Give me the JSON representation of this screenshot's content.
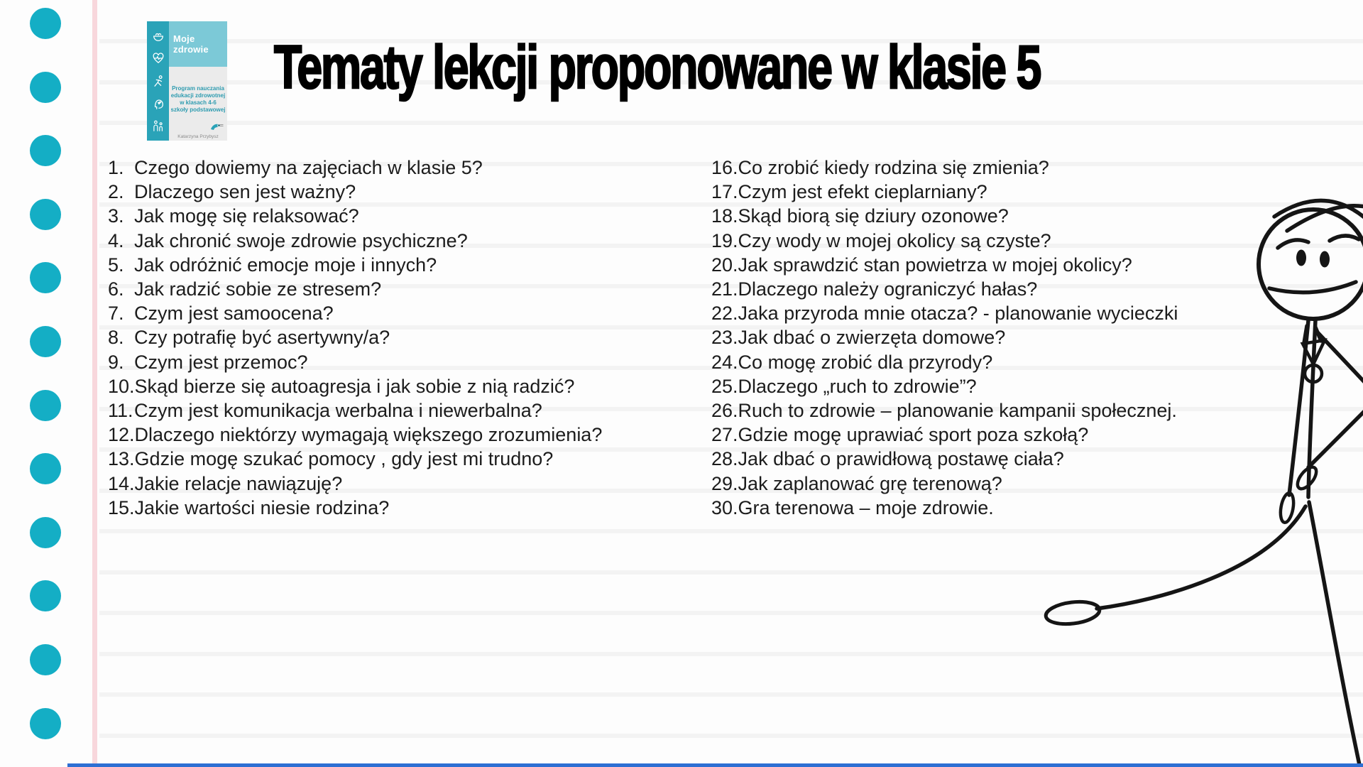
{
  "title": "Tematy lekcji proponowane w klasie 5",
  "book_cover": {
    "title": "Moje zdrowie",
    "subtitle_lines": [
      "Program nauczania",
      "edukacji zdrowotnej",
      "w klasach 4-6",
      "szkoły podstawowej"
    ],
    "author": "Katarzyna Przybysz",
    "icons": [
      "food-bowl-icon",
      "heart-pulse-icon",
      "runner-icon",
      "head-heart-icon",
      "family-icon"
    ]
  },
  "lists": {
    "left": [
      {
        "n": "1.",
        "t": "Czego dowiemy na zajęciach w klasie 5?"
      },
      {
        "n": "2.",
        "t": "Dlaczego sen jest ważny?"
      },
      {
        "n": "3.",
        "t": "Jak mogę się relaksować?"
      },
      {
        "n": "4.",
        "t": "Jak chronić swoje zdrowie psychiczne?"
      },
      {
        "n": "5.",
        "t": "Jak odróżnić emocje moje i innych?"
      },
      {
        "n": "6.",
        "t": "Jak radzić sobie ze stresem?"
      },
      {
        "n": "7.",
        "t": "Czym jest samoocena?"
      },
      {
        "n": "8.",
        "t": "Czy potrafię być asertywny/a?"
      },
      {
        "n": "9.",
        "t": "Czym jest przemoc?"
      },
      {
        "n": "10.",
        "t": "Skąd bierze się autoagresja i jak sobie z nią radzić?"
      },
      {
        "n": "11.",
        "t": "Czym jest komunikacja werbalna i niewerbalna?"
      },
      {
        "n": "12.",
        "t": "Dlaczego niektórzy wymagają większego zrozumienia?"
      },
      {
        "n": "13.",
        "t": "Gdzie mogę szukać pomocy , gdy jest mi trudno?"
      },
      {
        "n": "14.",
        "t": "Jakie relacje nawiązuję?"
      },
      {
        "n": "15.",
        "t": "Jakie wartości niesie rodzina?"
      }
    ],
    "right": [
      {
        "n": "16.",
        "t": "Co zrobić kiedy rodzina się zmienia?"
      },
      {
        "n": "17.",
        "t": "Czym jest efekt cieplarniany?"
      },
      {
        "n": "18.",
        "t": "Skąd biorą się dziury ozonowe?"
      },
      {
        "n": "19.",
        "t": "Czy wody w mojej okolicy są czyste?"
      },
      {
        "n": "20.",
        "t": "Jak sprawdzić stan powietrza w mojej okolicy?"
      },
      {
        "n": "21.",
        "t": "Dlaczego należy ograniczyć hałas?"
      },
      {
        "n": "22.",
        "t": "Jaka przyroda mnie otacza? - planowanie wycieczki"
      },
      {
        "n": "23.",
        "t": "Jak dbać o zwierzęta domowe?"
      },
      {
        "n": "24.",
        "t": "Co mogę zrobić dla przyrody?"
      },
      {
        "n": "25.",
        "t": "Dlaczego „ruch to zdrowie”?"
      },
      {
        "n": "26.",
        "t": "Ruch to zdrowie – planowanie kampanii społecznej."
      },
      {
        "n": "27.",
        "t": "Gdzie mogę uprawiać sport poza szkołą?"
      },
      {
        "n": "28.",
        "t": "Jak dbać o prawidłową postawę ciała?"
      },
      {
        "n": "29.",
        "t": "Jak zaplanować grę terenową?"
      },
      {
        "n": "30.",
        "t": "Gra terenowa – moje zdrowie."
      }
    ]
  },
  "figure": "teacher-stick-figure-with-whistle",
  "decor": {
    "dot_color": "#14aec5",
    "margin_line_color": "#f8d7dc",
    "ruled_line_color": "#f3f3f3",
    "bottom_bar_color": "#2e6fd3",
    "cover_strip_color": "#2aa3b8",
    "cover_band_color": "#7cc9d7",
    "dot_count": 12,
    "ruled_line_count": 18
  }
}
